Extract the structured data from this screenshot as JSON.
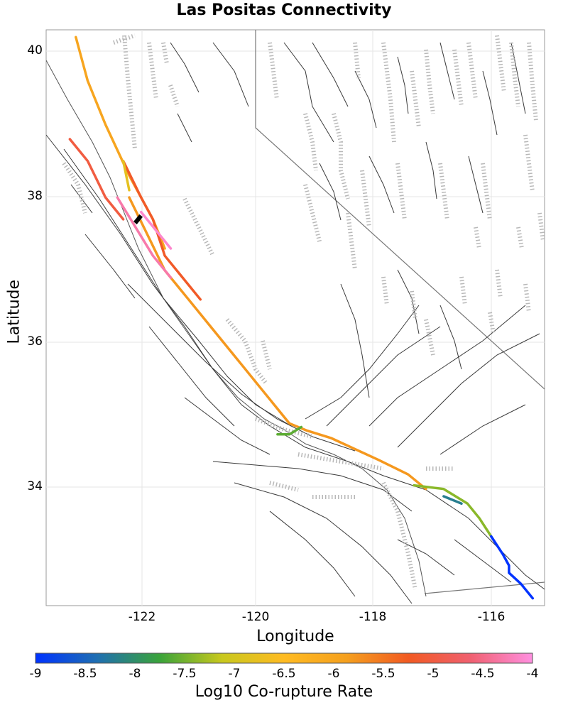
{
  "title": "Las Positas Connectivity",
  "x_axis": {
    "label": "Longitude",
    "ticks": [
      "-122",
      "-120",
      "-118",
      "-116"
    ]
  },
  "y_axis": {
    "label": "Latitude",
    "ticks": [
      "40",
      "38",
      "36",
      "34"
    ]
  },
  "colorbar": {
    "label": "Log10 Co-rupture Rate",
    "ticks": [
      "-9",
      "-8.5",
      "-8",
      "-7.5",
      "-7",
      "-6.5",
      "-6",
      "-5.5",
      "-5",
      "-4.5",
      "-4"
    ],
    "colors": [
      "#0033ff",
      "#1f6fb0",
      "#3aa33a",
      "#c8c81e",
      "#ffbb22",
      "#f5a01e",
      "#f15a22",
      "#f06070",
      "#ff90e0"
    ]
  },
  "chart_data": {
    "type": "map",
    "title": "Las Positas Connectivity",
    "xlabel": "Longitude",
    "ylabel": "Latitude",
    "xlim": [
      -123.3,
      -114.9
    ],
    "ylim": [
      32.4,
      40.3
    ],
    "colorbar_range": [
      -9,
      -4
    ],
    "source_fault": {
      "name": "Las Positas",
      "lon": [
        -121.8,
        -121.7
      ],
      "lat": [
        37.65,
        37.75
      ]
    },
    "rupture_traces": [
      {
        "rate": -6.0,
        "lon": [
          -122.8,
          -122.6,
          -122.3,
          -121.9,
          -121.7,
          -121.5,
          -121.4,
          -121.3
        ],
        "lat": [
          40.2,
          39.6,
          39.0,
          38.3,
          38.0,
          37.7,
          37.5,
          37.3
        ]
      },
      {
        "rate": -5.8,
        "lon": [
          -121.9,
          -121.6,
          -121.3,
          -120.9,
          -120.5,
          -120.0,
          -119.6,
          -119.2,
          -118.9,
          -118.5,
          -117.7,
          -117.2,
          -116.9
        ],
        "lat": [
          38.0,
          37.5,
          37.0,
          36.6,
          36.2,
          35.7,
          35.3,
          34.9,
          34.8,
          34.7,
          34.4,
          34.2,
          34.0
        ]
      },
      {
        "rate": -5.0,
        "lon": [
          -122.9,
          -122.6,
          -122.3,
          -122.0
        ],
        "lat": [
          38.8,
          38.5,
          38.0,
          37.7
        ]
      },
      {
        "rate": -5.2,
        "lon": [
          -122.0,
          -121.7,
          -121.5,
          -121.3,
          -121.0,
          -120.7
        ],
        "lat": [
          38.5,
          38.0,
          37.7,
          37.2,
          36.9,
          36.6
        ]
      },
      {
        "rate": -4.3,
        "lon": [
          -122.1,
          -121.8,
          -121.5,
          -121.2
        ],
        "lat": [
          38.0,
          37.6,
          37.2,
          36.9
        ]
      },
      {
        "rate": -4.1,
        "lon": [
          -121.7,
          -121.2
        ],
        "lat": [
          37.8,
          37.3
        ]
      },
      {
        "rate": -6.8,
        "lon": [
          -122.0,
          -121.9
        ],
        "lat": [
          38.5,
          38.1
        ]
      },
      {
        "rate": -7.6,
        "lon": [
          -119.4,
          -119.2,
          -119.0
        ],
        "lat": [
          34.75,
          34.75,
          34.85
        ]
      },
      {
        "rate": -7.4,
        "lon": [
          -117.1,
          -116.6,
          -116.2,
          -116.0,
          -115.8
        ],
        "lat": [
          34.05,
          34.0,
          33.8,
          33.6,
          33.35
        ]
      },
      {
        "rate": -8.2,
        "lon": [
          -116.6,
          -116.3
        ],
        "lat": [
          33.9,
          33.8
        ]
      },
      {
        "rate": -9.0,
        "lon": [
          -115.8,
          -115.6,
          -115.5,
          -115.5,
          -115.3,
          -115.1
        ],
        "lat": [
          33.35,
          33.1,
          32.95,
          32.85,
          32.7,
          32.5
        ]
      }
    ]
  }
}
